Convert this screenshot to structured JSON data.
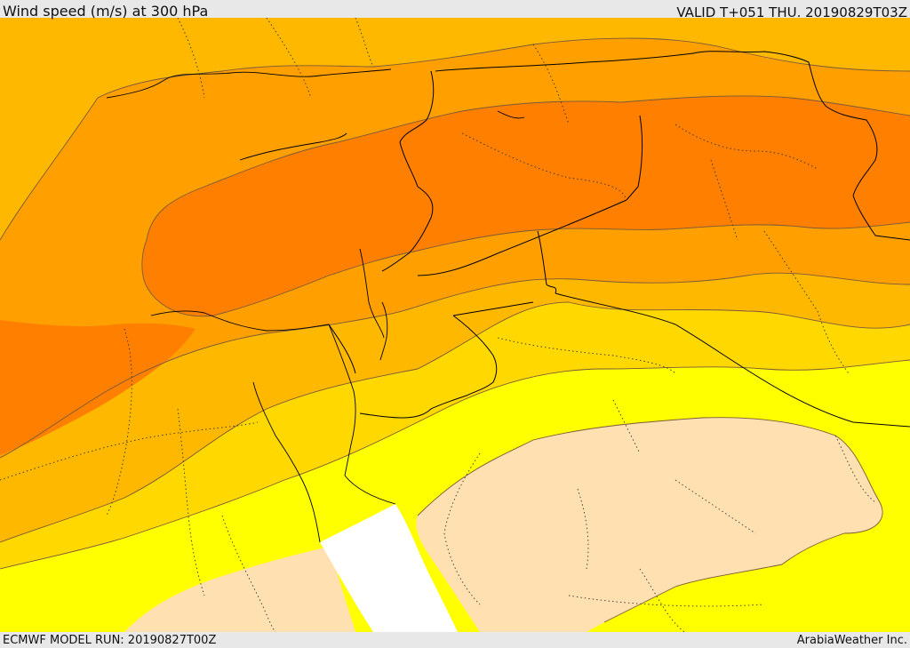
{
  "header": {
    "title": "Wind speed (m/s) at 300 hPa",
    "valid": "VALID T+051 THU. 20190829T03Z"
  },
  "footer": {
    "model_run": "ECMWF MODEL RUN: 20190827T00Z",
    "credit": "ArabiaWeather Inc."
  },
  "colors": {
    "band_lowest": "#ffffff",
    "band_low": "#ffe0b0",
    "band_yellow": "#ffff00",
    "band_gold": "#ffd800",
    "band_amber": "#ffb800",
    "band_orange": "#ff9f00",
    "band_dark_orange": "#ff7f00",
    "contour_line": "#7a5a3a",
    "border_line": "#000000"
  }
}
